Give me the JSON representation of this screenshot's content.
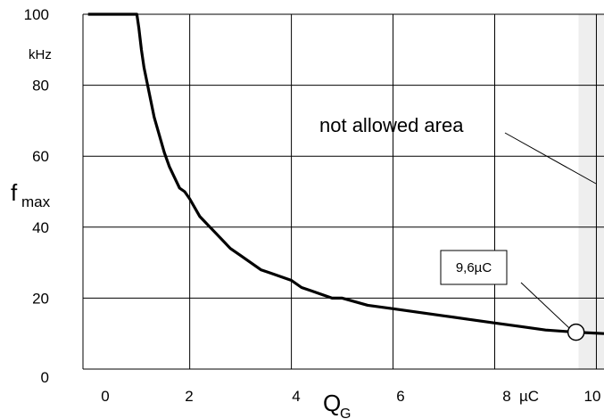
{
  "chart_data": {
    "type": "line",
    "title": "",
    "xlabel": "Q",
    "xlabel_sub": "G",
    "x_unit": "µC",
    "ylabel": "f",
    "ylabel_sub": "max",
    "y_unit": "kHz",
    "xlim": [
      -0.1,
      10.15
    ],
    "ylim": [
      0,
      100
    ],
    "x_ticks": [
      0,
      2,
      4,
      6,
      8,
      10
    ],
    "x_tick_labels": [
      "0",
      "2",
      "4",
      "6",
      "8",
      "10"
    ],
    "y_ticks": [
      0,
      20,
      40,
      60,
      80,
      100
    ],
    "y_tick_labels": [
      "0",
      "20",
      "40",
      "60",
      "80",
      "100"
    ],
    "grid": true,
    "series": [
      {
        "x": [
          0,
          0.96,
          1.0,
          1.05,
          1.1,
          1.2,
          1.3,
          1.4,
          1.5,
          1.6,
          1.7,
          1.8,
          1.9,
          2.0,
          2.2,
          2.4,
          2.6,
          2.8,
          3.0,
          3.2,
          3.4,
          3.6,
          3.8,
          4.0,
          4.2,
          4.4,
          4.6,
          4.8,
          5.0,
          5.5,
          6.0,
          6.5,
          7.0,
          7.5,
          8.0,
          8.5,
          9.0,
          9.6,
          10.15
        ],
        "y": [
          100,
          100,
          96,
          90,
          85,
          78,
          71,
          66,
          61,
          57,
          54,
          51,
          50,
          48,
          43,
          40,
          37,
          34,
          32,
          30,
          28,
          27,
          26,
          25,
          23,
          22,
          21,
          20,
          20,
          18,
          17,
          16,
          15,
          14,
          13,
          12,
          11,
          10.4,
          10
        ]
      }
    ],
    "marker": {
      "x": 9.6,
      "y": 10.4,
      "label": "9,6µC"
    },
    "not_allowed_region": {
      "x_from": 9.6,
      "x_to": 10.15,
      "label": "not allowed area"
    },
    "colors": {
      "curve": "#000000",
      "grid": "#000000",
      "shaded": "#eeeeee"
    }
  }
}
